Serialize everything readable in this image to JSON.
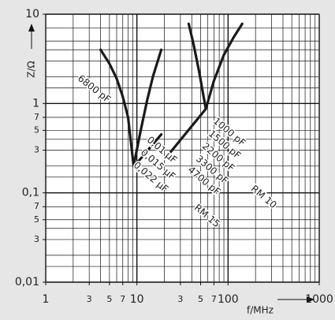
{
  "chart_data": {
    "type": "line",
    "y_label": "Z/Ω",
    "x_label": "f/MHz",
    "xscale": "log",
    "yscale": "log",
    "xlim": [
      1,
      1000
    ],
    "ylim": [
      0.01,
      10
    ],
    "xticks": [
      1,
      3,
      5,
      7,
      10,
      {
        "value": 30,
        "label": "3"
      },
      {
        "value": 50,
        "label": "5"
      },
      {
        "value": 70,
        "label": "7"
      },
      100,
      1000
    ],
    "yticks": [
      10,
      1,
      {
        "value": 0.7,
        "label": "7"
      },
      {
        "value": 0.5,
        "label": "5"
      },
      {
        "value": 0.3,
        "label": "3"
      },
      {
        "value": 0.1,
        "label": "0,1"
      },
      {
        "value": 0.07,
        "label": "7"
      },
      {
        "value": 0.05,
        "label": "5"
      },
      {
        "value": 0.03,
        "label": "3"
      },
      {
        "value": 0.01,
        "label": "0,01"
      }
    ],
    "xgrid": [
      1,
      2,
      3,
      4,
      5,
      6,
      7,
      8,
      9,
      10,
      20,
      30,
      40,
      50,
      60,
      70,
      80,
      90,
      100,
      200,
      300,
      400,
      500,
      600,
      700,
      800,
      900,
      1000
    ],
    "ygrid": [
      0.01,
      0.015,
      0.02,
      0.03,
      0.04,
      0.05,
      0.07,
      0.1,
      0.15,
      0.2,
      0.3,
      0.4,
      0.5,
      0.7,
      1,
      1.5,
      2,
      3,
      4,
      5,
      7,
      10
    ],
    "grid": true,
    "series": [
      {
        "color": "#1a1a1a",
        "x": [
          4,
          5,
          6,
          7,
          8,
          9.2,
          11,
          13,
          15,
          18.5
        ],
        "values": [
          4,
          2.8,
          1.9,
          1.2,
          0.7,
          0.2,
          0.5,
          1.1,
          2,
          4
        ]
      },
      {
        "color": "#1a1a1a",
        "x": [
          9.4,
          18.5
        ],
        "values": [
          0.2,
          0.45
        ]
      },
      {
        "color": "#1a1a1a",
        "x": [
          23,
          57
        ],
        "values": [
          0.28,
          0.87
        ]
      },
      {
        "color": "#1a1a1a",
        "x": [
          37,
          42,
          48,
          57,
          70,
          90,
          115,
          143
        ],
        "values": [
          7.8,
          4.5,
          2.3,
          0.87,
          1.8,
          3.5,
          5.5,
          7.8
        ]
      }
    ],
    "annotations": [
      "6800 pF",
      "0,01 μF",
      "0,015 μF",
      "0,022 μF",
      "1000 pF",
      "1500 pF",
      "2200 pF",
      "3300 pF",
      "4700 pF",
      "RM 15",
      "RM 10"
    ]
  }
}
